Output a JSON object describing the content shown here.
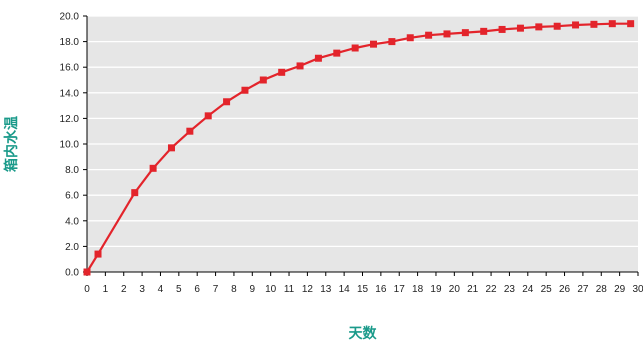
{
  "chart_data": {
    "type": "line",
    "title": "",
    "xlabel": "天数",
    "ylabel": "箱内水温",
    "xlim": [
      0,
      30
    ],
    "ylim": [
      0,
      20
    ],
    "x_ticks": [
      "0",
      "1",
      "2",
      "3",
      "4",
      "5",
      "6",
      "7",
      "8",
      "9",
      "10",
      "11",
      "12",
      "13",
      "14",
      "15",
      "16",
      "17",
      "18",
      "19",
      "20",
      "21",
      "22",
      "23",
      "24",
      "25",
      "26",
      "27",
      "28",
      "29",
      "30"
    ],
    "y_ticks": [
      "0.0",
      "2.0",
      "4.0",
      "6.0",
      "8.0",
      "10.0",
      "12.0",
      "14.0",
      "16.0",
      "18.0",
      "20.0"
    ],
    "grid": true,
    "legend": "none",
    "colors": {
      "line": "#e3242b",
      "marker": "#e3242b",
      "plot_bg": "#e6e6e6",
      "gridline": "#ffffff",
      "axis_title": "#1a9a8a"
    },
    "series": [
      {
        "x": [
          0,
          0.6,
          2.6,
          3.6,
          4.6,
          5.6,
          6.6,
          7.6,
          8.6,
          9.6,
          10.6,
          11.6,
          12.6,
          13.6,
          14.6,
          15.6,
          16.6,
          17.6,
          18.6,
          19.6,
          20.6,
          21.6,
          22.6,
          23.6,
          24.6,
          25.6,
          26.6,
          27.6,
          28.6,
          29.6
        ],
        "y": [
          0.0,
          1.4,
          6.2,
          8.1,
          9.7,
          11.0,
          12.2,
          13.3,
          14.2,
          15.0,
          15.6,
          16.1,
          16.7,
          17.1,
          17.5,
          17.8,
          18.0,
          18.3,
          18.5,
          18.6,
          18.7,
          18.8,
          18.95,
          19.05,
          19.15,
          19.2,
          19.3,
          19.35,
          19.4,
          19.4
        ]
      }
    ]
  }
}
